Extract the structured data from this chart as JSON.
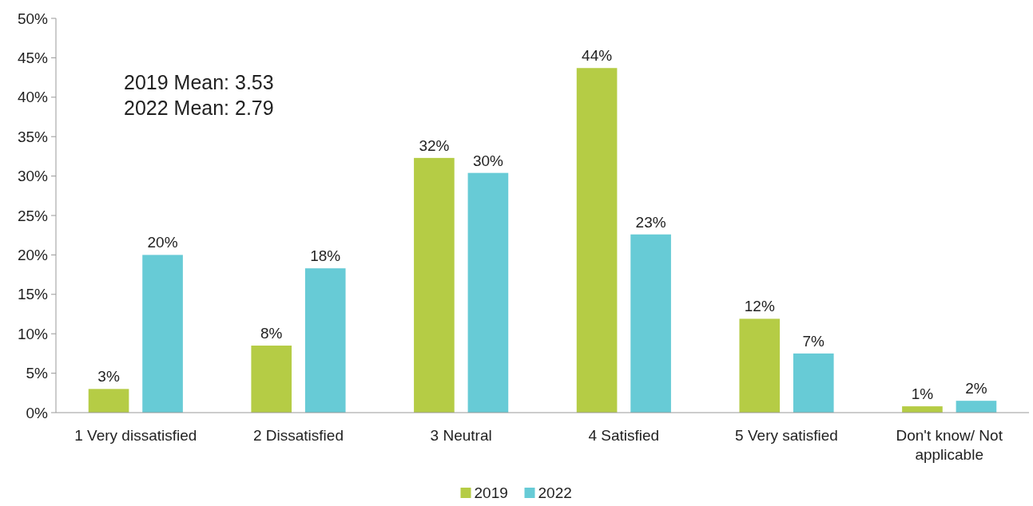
{
  "chart_data": {
    "type": "bar",
    "categories": [
      "1 Very dissatisfied",
      "2 Dissatisfied",
      "3 Neutral",
      "4 Satisfied",
      "5 Very satisfied",
      "Don't know/ Not applicable"
    ],
    "series": [
      {
        "name": "2019",
        "color": "#b5cc45",
        "values": [
          3.0,
          8.5,
          32.3,
          43.7,
          11.9,
          0.8
        ],
        "value_labels": [
          "3%",
          "8%",
          "32%",
          "44%",
          "12%",
          "1%"
        ]
      },
      {
        "name": "2022",
        "color": "#67cbd6",
        "values": [
          20.0,
          18.3,
          30.4,
          22.6,
          7.5,
          1.5
        ],
        "value_labels": [
          "20%",
          "18%",
          "30%",
          "23%",
          "7%",
          "2%"
        ]
      }
    ],
    "ylim": [
      0,
      50
    ],
    "yticks": [
      {
        "value": 0,
        "label": "0%"
      },
      {
        "value": 5,
        "label": "5%"
      },
      {
        "value": 10,
        "label": "10%"
      },
      {
        "value": 15,
        "label": "15%"
      },
      {
        "value": 20,
        "label": "20%"
      },
      {
        "value": 25,
        "label": "25%"
      },
      {
        "value": 30,
        "label": "30%"
      },
      {
        "value": 35,
        "label": "35%"
      },
      {
        "value": 40,
        "label": "40%"
      },
      {
        "value": 45,
        "label": "45%"
      },
      {
        "value": 50,
        "label": "50%"
      }
    ],
    "annotations": [
      "2019 Mean: 3.53",
      "2022 Mean: 2.79"
    ],
    "legend": "bottom",
    "grid": false
  }
}
